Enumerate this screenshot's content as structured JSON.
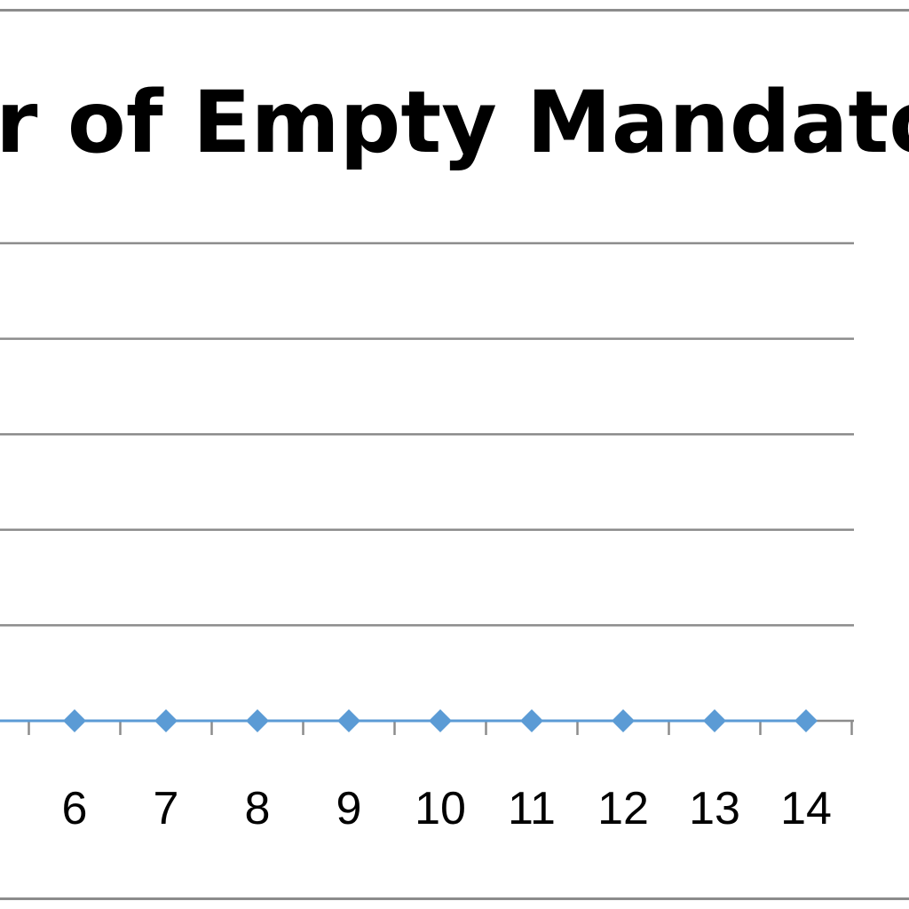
{
  "chart_data": {
    "type": "line",
    "title": "er of Empty Mandatory",
    "xlabel": "",
    "ylabel": "",
    "x_tick_labels": [
      "6",
      "7",
      "8",
      "9",
      "10",
      "11",
      "12",
      "13",
      "14"
    ],
    "series": [
      {
        "x": [
          6,
          7,
          8,
          9,
          10,
          11,
          12,
          13,
          14
        ],
        "values": [
          0,
          0,
          0,
          0,
          0,
          0,
          0,
          0,
          0
        ],
        "color": "#5b9bd5",
        "marker": "diamond"
      }
    ],
    "gridlines": 5,
    "grid": true,
    "legend": "none"
  }
}
